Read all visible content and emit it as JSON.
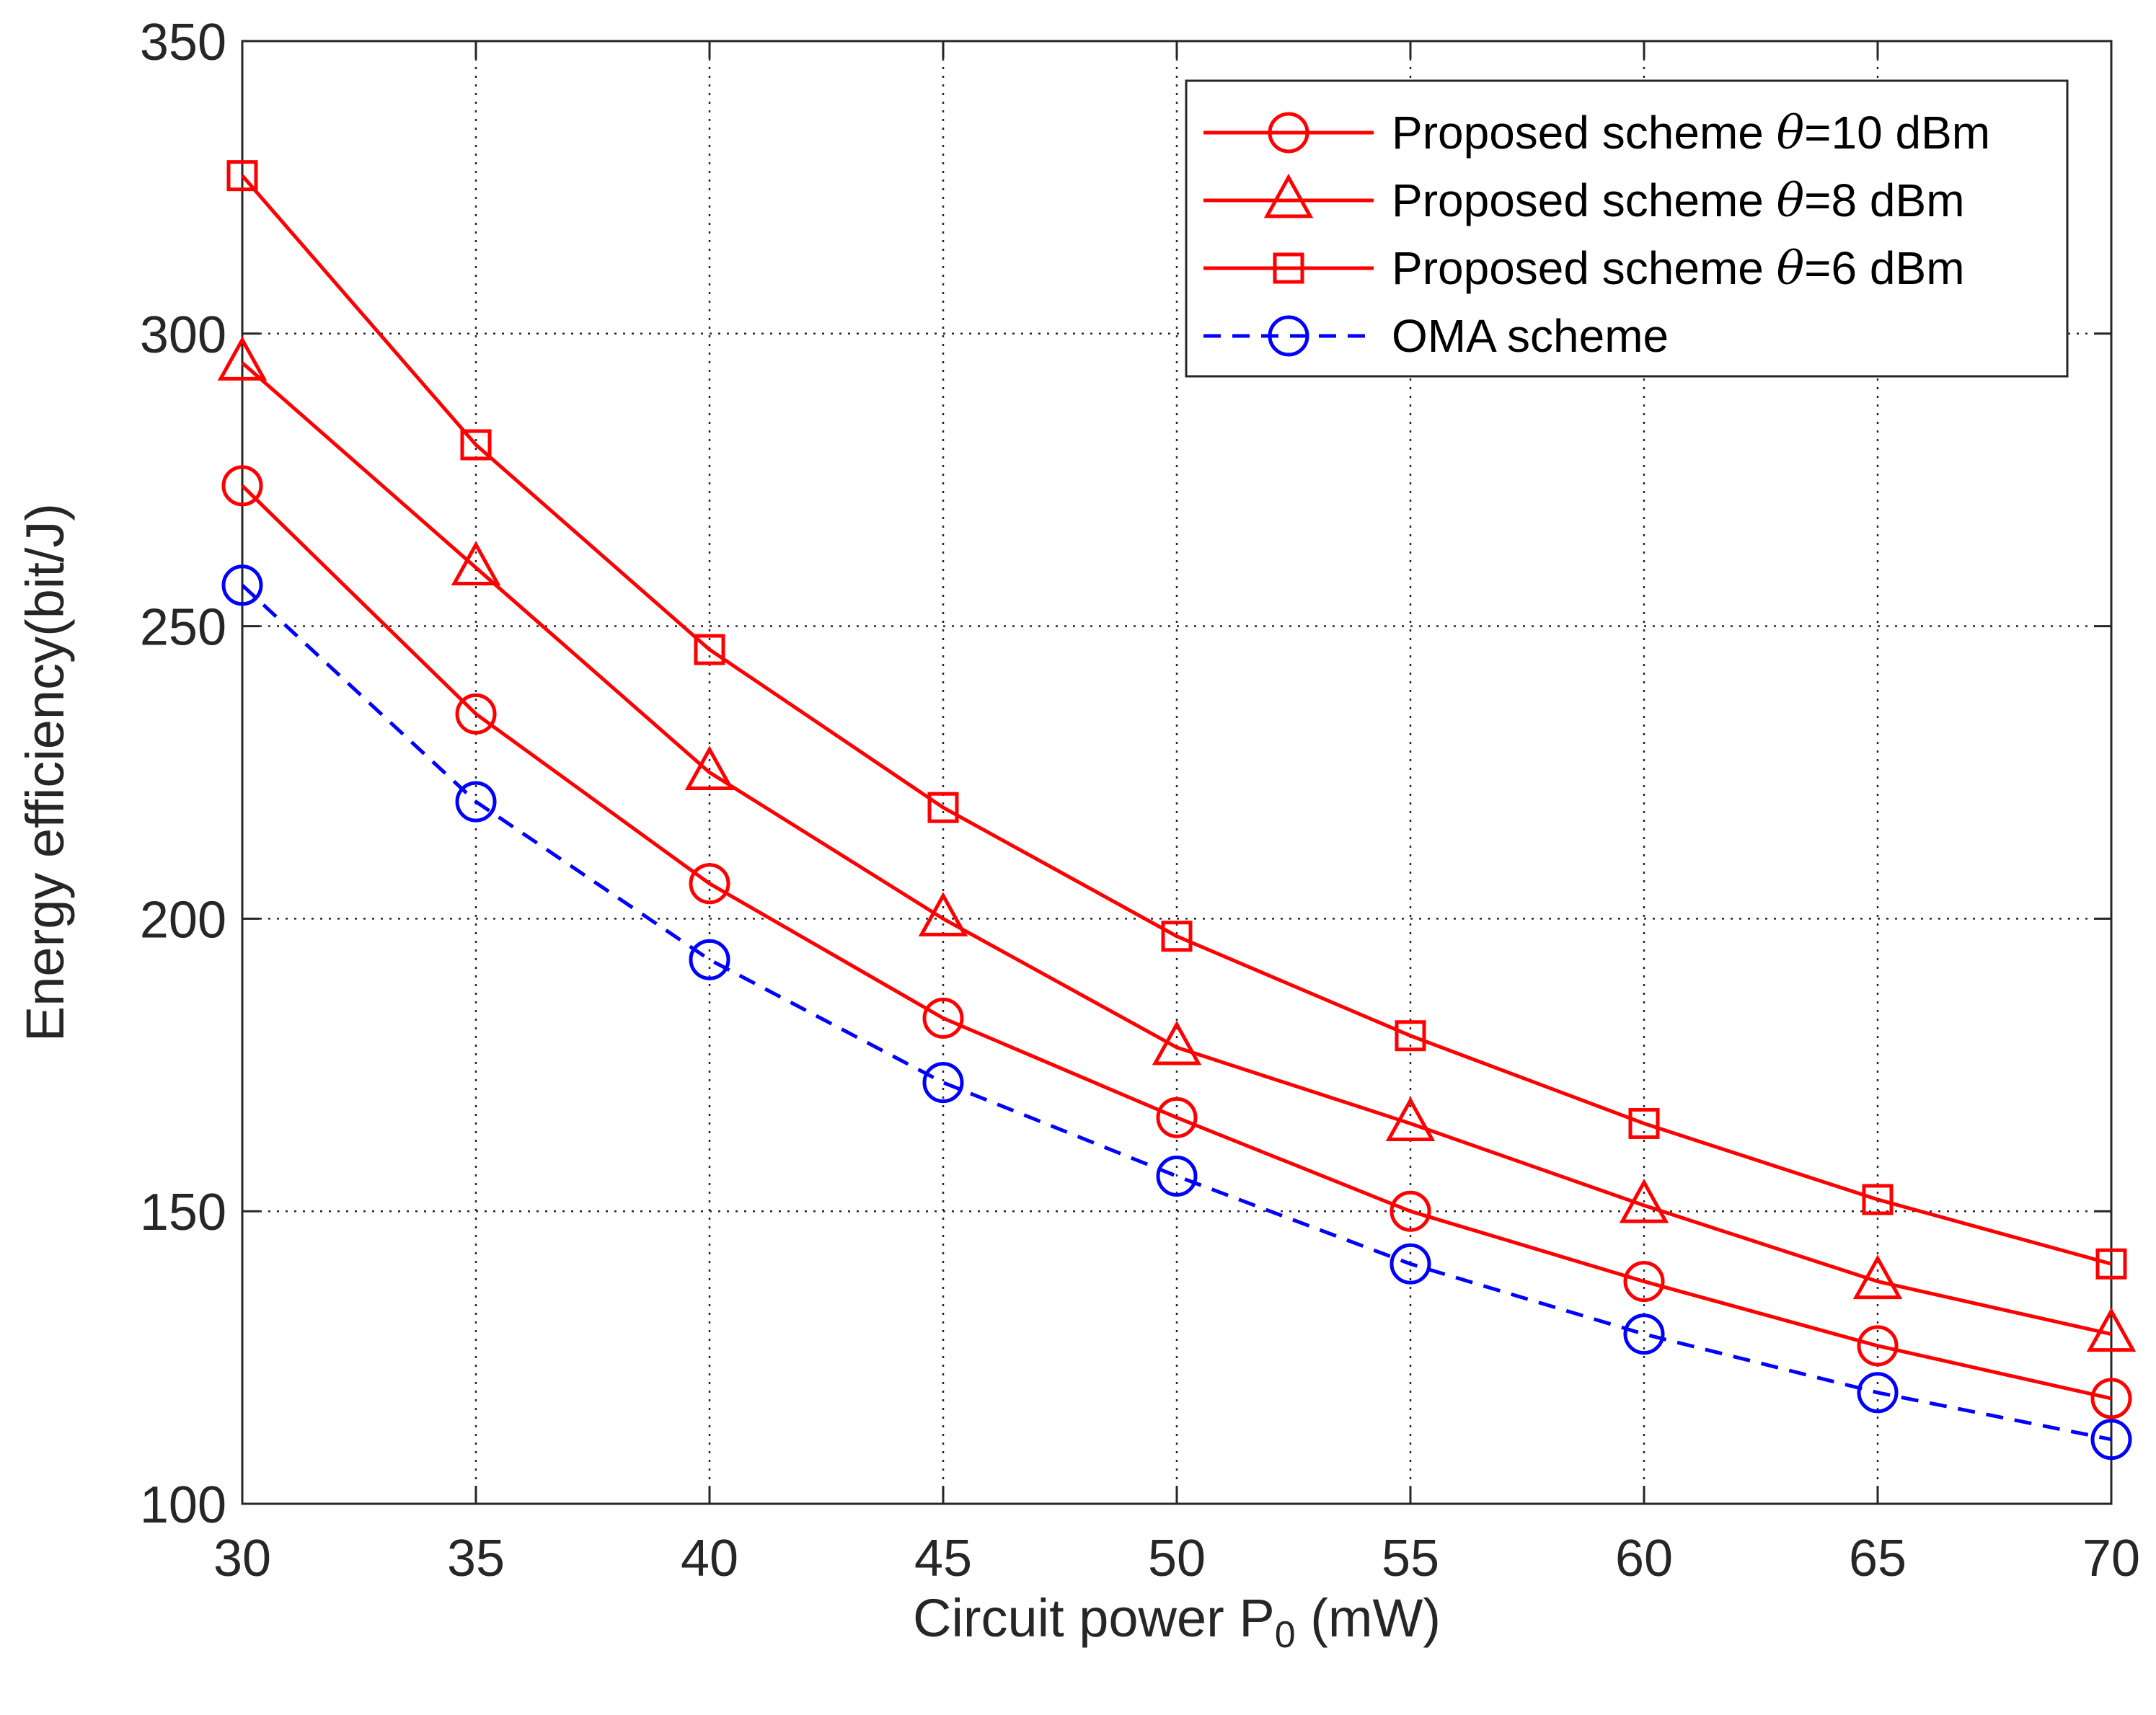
{
  "chart_data": {
    "type": "line",
    "title": "",
    "xlabel": {
      "prefix": "Circuit power P",
      "subscript": "0",
      "suffix": " (mW)"
    },
    "ylabel": "Energy efficiency(bit/J)",
    "x": [
      30,
      35,
      40,
      45,
      50,
      55,
      60,
      65,
      70
    ],
    "xlim": [
      30,
      70
    ],
    "ylim": [
      100,
      350
    ],
    "xticks": [
      30,
      35,
      40,
      45,
      50,
      55,
      60,
      65,
      70
    ],
    "yticks": [
      100,
      150,
      200,
      250,
      300,
      350
    ],
    "grid": true,
    "legend_position": "top-right",
    "series": [
      {
        "name": "Proposed scheme θ=10 dBm",
        "label_prefix": "Proposed scheme ",
        "label_symbol": "θ",
        "label_suffix": "=10 dBm",
        "color": "#ff0000",
        "marker": "circle",
        "dashed": false,
        "values": [
          274,
          235,
          206,
          183,
          166,
          150,
          138,
          127,
          118
        ]
      },
      {
        "name": "Proposed scheme  θ=8 dBm",
        "label_prefix": "Proposed scheme  ",
        "label_symbol": "θ",
        "label_suffix": "=8 dBm",
        "color": "#ff0000",
        "marker": "triangle",
        "dashed": false,
        "values": [
          295,
          260,
          225,
          200,
          178,
          165,
          151,
          138,
          129
        ]
      },
      {
        "name": "Proposed scheme  θ=6 dBm",
        "label_prefix": "Proposed scheme  ",
        "label_symbol": "θ",
        "label_suffix": "=6 dBm",
        "color": "#ff0000",
        "marker": "square",
        "dashed": false,
        "values": [
          327,
          281,
          246,
          219,
          197,
          180,
          165,
          152,
          141
        ]
      },
      {
        "name": "OMA  scheme",
        "label_prefix": "OMA  scheme",
        "label_symbol": "",
        "label_suffix": "",
        "color": "#0000ff",
        "marker": "circle",
        "dashed": true,
        "values": [
          257,
          220,
          193,
          172,
          156,
          141,
          129,
          119,
          111
        ]
      }
    ]
  }
}
